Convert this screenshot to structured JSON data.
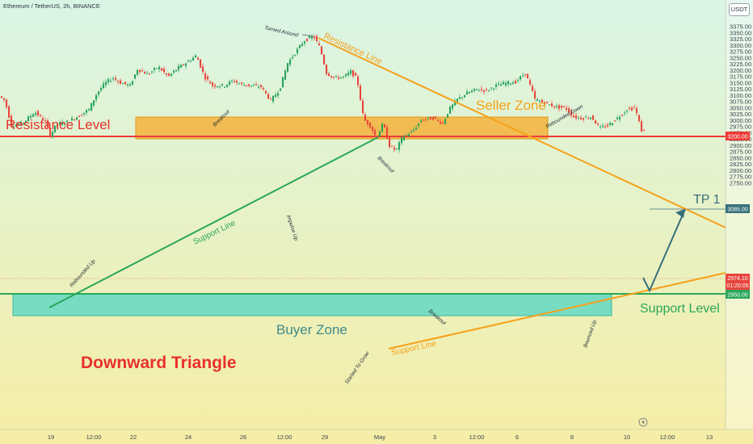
{
  "header": {
    "title": "Ethereum / TetherUS, 2h, BINANCE",
    "currency_button": "USDT"
  },
  "colors": {
    "bg_top": "#d9f5e6",
    "bg_bottom": "#f6eea6",
    "resistance": "#ee3b36",
    "support_green": "#2aa75a",
    "orange": "#f6a11b",
    "seller_zone": "#f3b23b",
    "buyer_zone": "#61d8c2",
    "candle_up": "#28a35b",
    "candle_down": "#e8453c",
    "price_now_bg": "#e8453c",
    "tp_line": "#37707b",
    "title_red": "#e8312d"
  },
  "annotations": {
    "resistance_level": "Resistance Level",
    "seller_zone": "Seller Zone",
    "buyer_zone": "Buyer Zone",
    "downward_triangle": "Downward Triangle",
    "support_level": "Support Level",
    "tp1": "TP 1",
    "resistance_line": "Resistance Line",
    "support_line_top": "Support Line",
    "support_line_bottom": "Support Line",
    "turned_around": "Turned Around",
    "breakout_1": "Breakout",
    "rebounded_down": "Rebounded Down",
    "rebounded_up": "Rebounded Up",
    "impulse_up": "Impulse Up",
    "breakout_2": "Breakout",
    "breakout_3": "Breakout",
    "started_to_grow": "Started To Grow",
    "bounced_up": "Bounced Up"
  },
  "price_tags": {
    "level_3200": "3200.00",
    "tp_3085": "3085.00",
    "current_price": "2974.10",
    "countdown": "01:20:05",
    "level_2950": "2950.00"
  },
  "chart_data": {
    "type": "candlestick",
    "title": "Ethereum / TetherUS, 2h, BINANCE",
    "y_ticks": [
      "3375.00",
      "3350.00",
      "3325.00",
      "3300.00",
      "3275.00",
      "3250.00",
      "3225.00",
      "3200.00",
      "3175.00",
      "3150.00",
      "3125.00",
      "3100.00",
      "3075.00",
      "3050.00",
      "3025.00",
      "3000.00",
      "2975.00",
      "2950.00",
      "2925.00",
      "2900.00",
      "2875.00",
      "2850.00",
      "2825.00",
      "2800.00",
      "2775.00",
      "2750.00"
    ],
    "x_ticks": [
      "19",
      "12:00",
      "22",
      "24",
      "26",
      "12:00",
      "29",
      "May",
      "3",
      "12:00",
      "6",
      "8",
      "10",
      "12:00",
      "13"
    ],
    "ylim": [
      2745,
      3390
    ],
    "levels": {
      "resistance": 3200,
      "support": 2950,
      "tp1": 3085
    },
    "zones": {
      "seller": [
        3196,
        3230
      ],
      "buyer": [
        2914,
        2952
      ]
    },
    "current_price": 2974.1
  }
}
